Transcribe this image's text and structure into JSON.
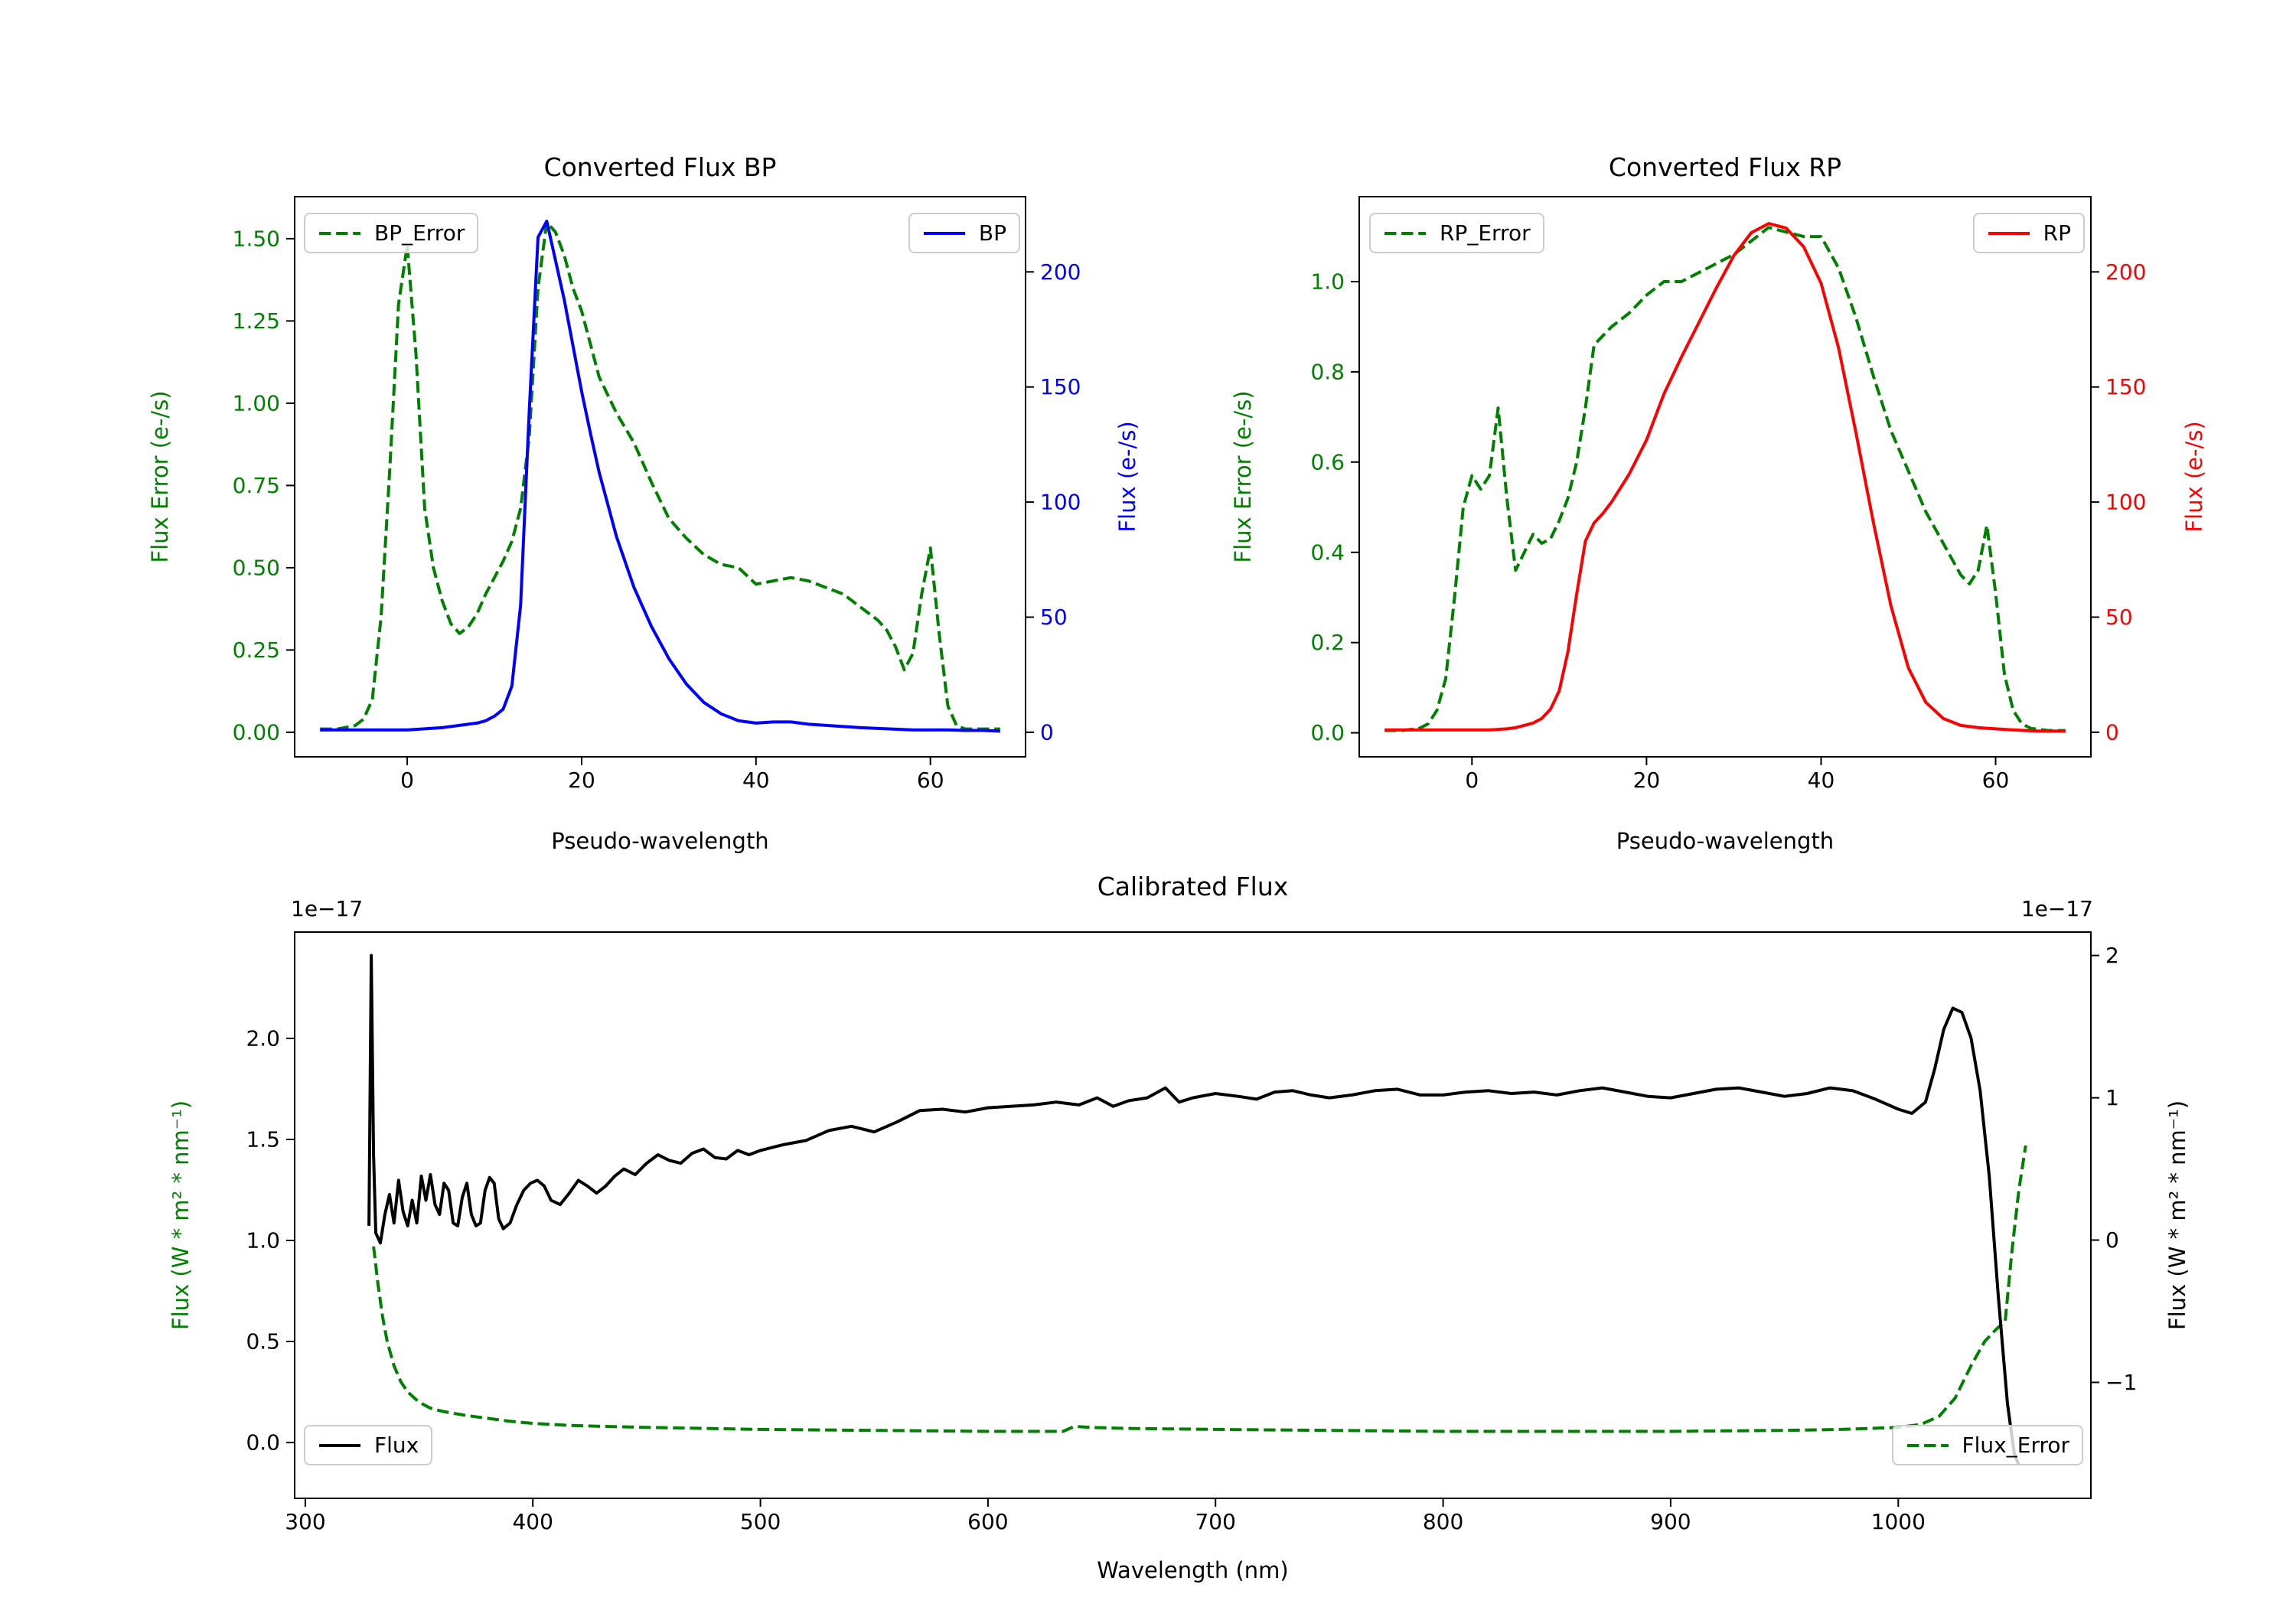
{
  "figure": {
    "background": "#ffffff"
  },
  "chart_data": [
    {
      "id": "bp",
      "type": "line",
      "title": "Converted Flux BP",
      "xlabel": "Pseudo-wavelength",
      "ylabel_left": "Flux Error (e-/s)",
      "ylabel_right": "Flux (e-/s)",
      "grid": false,
      "colors": {
        "left_label": "#008000",
        "right_label": "#0000ff",
        "left_ticks": "#008000",
        "right_ticks": "#0000ff",
        "x_ticks": "#000000"
      },
      "x_range": [
        -13,
        71
      ],
      "x_ticks": [
        0,
        20,
        40,
        60
      ],
      "x_tick_labels": [
        "0",
        "20",
        "40",
        "60"
      ],
      "y_left_range": [
        -0.077,
        1.63
      ],
      "y_left_ticks": [
        0,
        0.25,
        0.5,
        0.75,
        1.0,
        1.25,
        1.5
      ],
      "y_left_tick_labels": [
        "0.00",
        "0.25",
        "0.50",
        "0.75",
        "1.00",
        "1.25",
        "1.50"
      ],
      "y_right_range": [
        -11,
        233
      ],
      "y_right_ticks": [
        0,
        50,
        100,
        150,
        200
      ],
      "y_right_tick_labels": [
        "0",
        "50",
        "100",
        "150",
        "200"
      ],
      "legends": [
        {
          "label": "BP_Error",
          "color": "#008000",
          "dash": true,
          "position": "upper left"
        },
        {
          "label": "BP",
          "color": "#0000ff",
          "dash": false,
          "position": "upper right"
        }
      ],
      "series": [
        {
          "name": "BP_Error",
          "axis": "left",
          "color": "#008000",
          "dash": true,
          "x": [
            -10,
            -8,
            -6,
            -5,
            -4,
            -3,
            -2,
            -1,
            0,
            1,
            2,
            3,
            4,
            5,
            6,
            7,
            8,
            9,
            10,
            11,
            12,
            13,
            14,
            15,
            16,
            17,
            18,
            19,
            20,
            21,
            22,
            24,
            26,
            28,
            30,
            32,
            34,
            36,
            38,
            40,
            42,
            44,
            46,
            48,
            50,
            52,
            54,
            55,
            56,
            57,
            58,
            59,
            60,
            61,
            62,
            63,
            64,
            66,
            68
          ],
          "y": [
            0.01,
            0.01,
            0.02,
            0.04,
            0.1,
            0.35,
            0.8,
            1.3,
            1.48,
            1.15,
            0.68,
            0.5,
            0.4,
            0.33,
            0.3,
            0.32,
            0.36,
            0.42,
            0.47,
            0.52,
            0.58,
            0.68,
            0.9,
            1.35,
            1.55,
            1.52,
            1.45,
            1.35,
            1.28,
            1.18,
            1.08,
            0.97,
            0.88,
            0.76,
            0.65,
            0.59,
            0.54,
            0.51,
            0.5,
            0.45,
            0.46,
            0.47,
            0.46,
            0.44,
            0.42,
            0.38,
            0.34,
            0.31,
            0.26,
            0.19,
            0.24,
            0.42,
            0.56,
            0.3,
            0.08,
            0.02,
            0.01,
            0.01,
            0.01
          ]
        },
        {
          "name": "BP",
          "axis": "right",
          "color": "#0000ff",
          "dash": false,
          "x": [
            -10,
            -6,
            -2,
            0,
            2,
            4,
            6,
            8,
            9,
            10,
            11,
            12,
            13,
            14,
            15,
            16,
            17,
            18,
            19,
            20,
            21,
            22,
            24,
            26,
            28,
            30,
            32,
            34,
            36,
            38,
            40,
            42,
            44,
            46,
            48,
            50,
            52,
            55,
            58,
            60,
            62,
            64,
            66,
            68
          ],
          "y": [
            1,
            1,
            1,
            1,
            1.5,
            2,
            3,
            4,
            5,
            7,
            10,
            20,
            55,
            140,
            215,
            222,
            205,
            188,
            168,
            148,
            130,
            113,
            85,
            63,
            46,
            32,
            21,
            13,
            8,
            5,
            4,
            4.5,
            4.5,
            3.5,
            3,
            2.5,
            2,
            1.5,
            1,
            1,
            1,
            0.8,
            0.8,
            0.5
          ]
        }
      ]
    },
    {
      "id": "rp",
      "type": "line",
      "title": "Converted Flux RP",
      "xlabel": "Pseudo-wavelength",
      "ylabel_left": "Flux Error (e-/s)",
      "ylabel_right": "Flux (e-/s)",
      "grid": false,
      "colors": {
        "left_label": "#008000",
        "right_label": "#ff0000",
        "left_ticks": "#008000",
        "right_ticks": "#ff0000",
        "x_ticks": "#000000"
      },
      "x_range": [
        -13,
        71
      ],
      "x_ticks": [
        0,
        20,
        40,
        60
      ],
      "x_tick_labels": [
        "0",
        "20",
        "40",
        "60"
      ],
      "y_left_range": [
        -0.055,
        1.19
      ],
      "y_left_ticks": [
        0,
        0.2,
        0.4,
        0.6,
        0.8,
        1.0
      ],
      "y_left_tick_labels": [
        "0.0",
        "0.2",
        "0.4",
        "0.6",
        "0.8",
        "1.0"
      ],
      "y_right_range": [
        -11,
        233
      ],
      "y_right_ticks": [
        0,
        50,
        100,
        150,
        200
      ],
      "y_right_tick_labels": [
        "0",
        "50",
        "100",
        "150",
        "200"
      ],
      "legends": [
        {
          "label": "RP_Error",
          "color": "#008000",
          "dash": true,
          "position": "upper left"
        },
        {
          "label": "RP",
          "color": "#ff0000",
          "dash": false,
          "position": "upper right"
        }
      ],
      "series": [
        {
          "name": "RP_Error",
          "axis": "left",
          "color": "#008000",
          "dash": true,
          "x": [
            -10,
            -8,
            -6,
            -5,
            -4,
            -3,
            -2,
            -1,
            0,
            1,
            2,
            3,
            4,
            5,
            6,
            7,
            8,
            9,
            10,
            11,
            12,
            13,
            14,
            15,
            16,
            18,
            20,
            22,
            24,
            26,
            28,
            30,
            32,
            34,
            36,
            38,
            40,
            42,
            44,
            46,
            48,
            50,
            52,
            54,
            56,
            57,
            58,
            59,
            60,
            61,
            62,
            63,
            64,
            66,
            68
          ],
          "y": [
            0.005,
            0.005,
            0.01,
            0.02,
            0.05,
            0.12,
            0.3,
            0.5,
            0.57,
            0.54,
            0.57,
            0.72,
            0.52,
            0.36,
            0.4,
            0.44,
            0.42,
            0.43,
            0.47,
            0.52,
            0.6,
            0.72,
            0.86,
            0.88,
            0.9,
            0.93,
            0.97,
            1.0,
            1.0,
            1.02,
            1.04,
            1.06,
            1.09,
            1.12,
            1.11,
            1.1,
            1.1,
            1.03,
            0.92,
            0.79,
            0.67,
            0.58,
            0.49,
            0.42,
            0.35,
            0.33,
            0.36,
            0.46,
            0.31,
            0.13,
            0.05,
            0.02,
            0.01,
            0.005,
            0.005
          ]
        },
        {
          "name": "RP",
          "axis": "right",
          "color": "#ff0000",
          "dash": false,
          "x": [
            -10,
            -6,
            -2,
            0,
            2,
            4,
            5,
            6,
            7,
            8,
            9,
            10,
            11,
            12,
            13,
            14,
            15,
            16,
            18,
            20,
            22,
            24,
            26,
            28,
            30,
            32,
            34,
            36,
            38,
            40,
            42,
            44,
            46,
            48,
            50,
            52,
            54,
            56,
            58,
            60,
            62,
            65,
            68
          ],
          "y": [
            1,
            1,
            1,
            1,
            1,
            1.5,
            2,
            3,
            4,
            6,
            10,
            18,
            35,
            60,
            83,
            91,
            95,
            100,
            112,
            127,
            147,
            163,
            178,
            193,
            207,
            217,
            221,
            219,
            211,
            195,
            167,
            130,
            91,
            55,
            28,
            13,
            6,
            3,
            2,
            1.5,
            1,
            0.5,
            0.5
          ]
        }
      ]
    },
    {
      "id": "cal",
      "type": "line",
      "title": "Calibrated Flux",
      "xlabel": "Wavelength (nm)",
      "ylabel_left": "Flux (W * m² * nm⁻¹)",
      "ylabel_right": "Flux (W * m² * nm⁻¹)",
      "offset_text": "1e−17",
      "grid": false,
      "colors": {
        "left_label": "#008000",
        "right_label": "#000000",
        "left_ticks": "#000000",
        "right_ticks": "#000000",
        "x_ticks": "#000000"
      },
      "x_range": [
        295,
        1085
      ],
      "x_ticks": [
        300,
        400,
        500,
        600,
        700,
        800,
        900,
        1000
      ],
      "x_tick_labels": [
        "300",
        "400",
        "500",
        "600",
        "700",
        "800",
        "900",
        "1000"
      ],
      "y_left_range": [
        -0.28,
        2.53
      ],
      "y_left_ticks": [
        0,
        0.5,
        1.0,
        1.5,
        2.0
      ],
      "y_left_tick_labels": [
        "0.0",
        "0.5",
        "1.0",
        "1.5",
        "2.0"
      ],
      "y_right_range": [
        -1.82,
        2.17
      ],
      "y_right_ticks": [
        -1,
        0,
        1,
        2
      ],
      "y_right_tick_labels": [
        "−1",
        "0",
        "1",
        "2"
      ],
      "legends": [
        {
          "label": "Flux",
          "color": "#000000",
          "dash": false,
          "position": "lower left"
        },
        {
          "label": "Flux_Error",
          "color": "#008000",
          "dash": true,
          "position": "lower right"
        }
      ],
      "series": [
        {
          "name": "Flux_Error",
          "axis": "left",
          "color": "#008000",
          "dash": true,
          "x": [
            330,
            332,
            334,
            336,
            339,
            342,
            345,
            350,
            355,
            360,
            365,
            370,
            380,
            390,
            400,
            415,
            430,
            450,
            475,
            500,
            550,
            600,
            633,
            638,
            645,
            660,
            700,
            750,
            800,
            850,
            900,
            950,
            975,
            1000,
            1010,
            1018,
            1025,
            1032,
            1038,
            1043,
            1047,
            1050,
            1053,
            1056
          ],
          "y": [
            0.97,
            0.78,
            0.62,
            0.5,
            0.38,
            0.3,
            0.25,
            0.2,
            0.17,
            0.155,
            0.145,
            0.135,
            0.12,
            0.105,
            0.095,
            0.085,
            0.08,
            0.075,
            0.07,
            0.065,
            0.06,
            0.055,
            0.055,
            0.08,
            0.075,
            0.07,
            0.065,
            0.06,
            0.055,
            0.055,
            0.055,
            0.06,
            0.065,
            0.075,
            0.09,
            0.13,
            0.22,
            0.38,
            0.5,
            0.56,
            0.6,
            0.95,
            1.25,
            1.47
          ]
        },
        {
          "name": "Flux",
          "axis": "right",
          "color": "#000000",
          "dash": false,
          "x": [
            328,
            329,
            330,
            331,
            333,
            335,
            337,
            339,
            341,
            343,
            345,
            347,
            349,
            351,
            353,
            355,
            357,
            359,
            361,
            363,
            365,
            367,
            369,
            371,
            373,
            375,
            377,
            379,
            381,
            383,
            385,
            387,
            390,
            393,
            396,
            399,
            402,
            405,
            408,
            412,
            416,
            420,
            424,
            428,
            432,
            436,
            440,
            445,
            450,
            455,
            460,
            465,
            470,
            475,
            480,
            485,
            490,
            495,
            500,
            510,
            520,
            530,
            540,
            550,
            560,
            570,
            580,
            590,
            600,
            610,
            620,
            630,
            640,
            648,
            655,
            662,
            670,
            678,
            684,
            690,
            700,
            710,
            718,
            726,
            734,
            742,
            750,
            760,
            770,
            780,
            790,
            800,
            810,
            820,
            830,
            840,
            850,
            860,
            870,
            880,
            890,
            900,
            910,
            920,
            930,
            940,
            950,
            960,
            970,
            980,
            990,
            1000,
            1006,
            1012,
            1016,
            1020,
            1024,
            1028,
            1032,
            1036,
            1040,
            1044,
            1048,
            1051,
            1053
          ],
          "y": [
            0.1,
            2.0,
            0.6,
            0.05,
            -0.02,
            0.18,
            0.32,
            0.12,
            0.42,
            0.2,
            0.1,
            0.28,
            0.12,
            0.45,
            0.28,
            0.46,
            0.25,
            0.18,
            0.4,
            0.35,
            0.12,
            0.1,
            0.3,
            0.4,
            0.18,
            0.1,
            0.12,
            0.35,
            0.44,
            0.4,
            0.15,
            0.08,
            0.12,
            0.25,
            0.35,
            0.4,
            0.42,
            0.38,
            0.28,
            0.25,
            0.33,
            0.42,
            0.38,
            0.33,
            0.38,
            0.45,
            0.5,
            0.46,
            0.54,
            0.6,
            0.56,
            0.54,
            0.61,
            0.64,
            0.58,
            0.57,
            0.63,
            0.6,
            0.63,
            0.67,
            0.7,
            0.77,
            0.8,
            0.76,
            0.83,
            0.91,
            0.92,
            0.9,
            0.93,
            0.94,
            0.95,
            0.97,
            0.95,
            1.0,
            0.94,
            0.98,
            1.0,
            1.07,
            0.97,
            1.0,
            1.03,
            1.01,
            0.99,
            1.04,
            1.05,
            1.02,
            1.0,
            1.02,
            1.05,
            1.06,
            1.02,
            1.02,
            1.04,
            1.05,
            1.03,
            1.04,
            1.02,
            1.05,
            1.07,
            1.04,
            1.01,
            1.0,
            1.03,
            1.06,
            1.07,
            1.04,
            1.01,
            1.03,
            1.07,
            1.05,
            0.99,
            0.92,
            0.89,
            0.97,
            1.2,
            1.48,
            1.63,
            1.6,
            1.42,
            1.05,
            0.45,
            -0.4,
            -1.15,
            -1.5,
            -1.58
          ]
        }
      ]
    }
  ]
}
